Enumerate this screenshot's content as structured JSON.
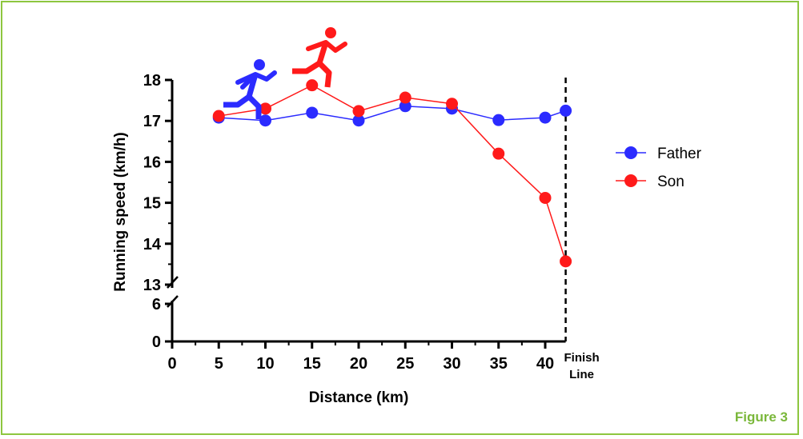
{
  "figure_label": "Figure 3",
  "colors": {
    "father": "#2b2bff",
    "son": "#ff1a1a",
    "border": "#8dc63f",
    "figure_label": "#7ab73a"
  },
  "icons": {
    "father_runner": "runner-icon",
    "son_runner": "runner-icon"
  },
  "chart_data": {
    "type": "line",
    "xlabel": "Distance (km)",
    "ylabel": "Running speed (km/h)",
    "x_ticks": [
      0,
      5,
      10,
      15,
      20,
      25,
      30,
      35,
      40
    ],
    "y_ticks_lower": [
      0,
      6
    ],
    "y_ticks_upper": [
      13,
      14,
      15,
      16,
      17,
      18
    ],
    "xlim": [
      0,
      42.195
    ],
    "ylim": [
      0,
      18
    ],
    "axis_break": [
      6,
      13
    ],
    "grid": false,
    "legend": "right",
    "finish_line": {
      "x": 42.195,
      "label_line1": "Finish",
      "label_line2": "Line"
    },
    "x": [
      5,
      10,
      15,
      20,
      25,
      30,
      35,
      40,
      42.195
    ],
    "series": [
      {
        "name": "Father",
        "values": [
          17.08,
          17.01,
          17.2,
          17.01,
          17.36,
          17.3,
          17.02,
          17.08,
          17.25
        ]
      },
      {
        "name": "Son",
        "values": [
          17.12,
          17.3,
          17.87,
          17.24,
          17.57,
          17.42,
          16.2,
          15.12,
          13.57
        ]
      }
    ]
  }
}
